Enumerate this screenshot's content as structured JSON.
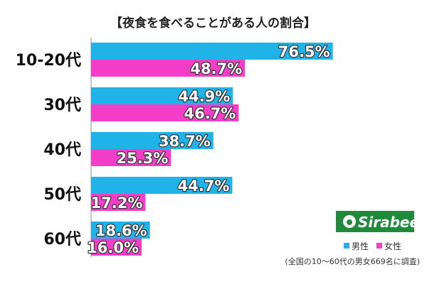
{
  "chart_data": {
    "type": "bar",
    "orientation": "horizontal",
    "title": "【夜食を食べることがある人の割合】",
    "categories": [
      "10-20代",
      "30代",
      "40代",
      "50代",
      "60代"
    ],
    "series": [
      {
        "name": "男性",
        "color": "#1fb3e8",
        "values": [
          76.5,
          44.9,
          38.7,
          44.7,
          18.6
        ],
        "labels": [
          "76.5%",
          "44.9%",
          "38.7%",
          "44.7%",
          "18.6%"
        ]
      },
      {
        "name": "女性",
        "color": "#f23ec8",
        "values": [
          48.7,
          46.7,
          25.3,
          17.2,
          16.0
        ],
        "labels": [
          "48.7%",
          "46.7%",
          "25.3%",
          "17.2%",
          "16.0%"
        ]
      }
    ],
    "xlim": [
      0,
      100
    ],
    "grid": false,
    "legend_position": "bottom-right"
  },
  "legend": {
    "male": "男性",
    "female": "女性"
  },
  "logo": {
    "text": "Sirabee",
    "color": "#1f8a3c"
  },
  "footnote": "(全国の10〜60代の男女669名に調査)"
}
